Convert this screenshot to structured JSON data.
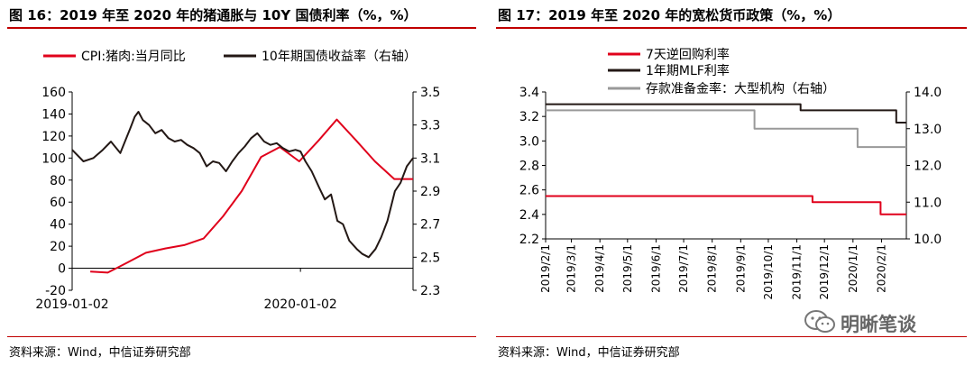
{
  "left_panel": {
    "title": "图 16：2019 年至 2020 年的猪通胀与 10Y 国债利率（%，%）",
    "source": "资料来源：Wind，中信证券研究部"
  },
  "right_panel": {
    "title": "图 17：2019 年至 2020 年的宽松货币政策（%，%）",
    "source": "资料来源：Wind，中信证券研究部"
  },
  "watermark": {
    "text": "明晰笔谈",
    "icon": "wechat-icon"
  },
  "chart_data": [
    {
      "type": "line",
      "x_type": "date",
      "xlim": [
        "2019-01-02",
        "2020-06-30"
      ],
      "x_ticks": [
        "2019-01-02",
        "2020-01-02"
      ],
      "ylim": [
        -20,
        160
      ],
      "y_ticks": [
        -20,
        0,
        20,
        40,
        60,
        80,
        100,
        120,
        140,
        160
      ],
      "y2lim": [
        2.3,
        3.5
      ],
      "y2_ticks": [
        2.3,
        2.5,
        2.7,
        2.9,
        3.1,
        3.3,
        3.5
      ],
      "legend_position": "top",
      "grid": false,
      "series": [
        {
          "name": "CPI:猪肉:当月同比",
          "axis": "left",
          "color": "#e0001b",
          "x": [
            "2019-01-31",
            "2019-02-28",
            "2019-03-31",
            "2019-04-30",
            "2019-05-31",
            "2019-06-30",
            "2019-07-31",
            "2019-08-31",
            "2019-09-30",
            "2019-10-31",
            "2019-11-30",
            "2019-12-31",
            "2020-01-31",
            "2020-02-29",
            "2020-03-31",
            "2020-04-30",
            "2020-05-31",
            "2020-06-30"
          ],
          "values": [
            -3,
            -4,
            5,
            14,
            18,
            21,
            27,
            47,
            70,
            101,
            110,
            97,
            116,
            135,
            116,
            97,
            81,
            81
          ]
        },
        {
          "name": "10年期国债收益率（右轴）",
          "axis": "right",
          "color": "#231815",
          "x": [
            "2019-01-02",
            "2019-01-20",
            "2019-02-05",
            "2019-02-20",
            "2019-03-05",
            "2019-03-20",
            "2019-04-05",
            "2019-04-12",
            "2019-04-18",
            "2019-04-25",
            "2019-05-05",
            "2019-05-15",
            "2019-05-25",
            "2019-06-05",
            "2019-06-15",
            "2019-06-25",
            "2019-07-05",
            "2019-07-15",
            "2019-07-25",
            "2019-08-05",
            "2019-08-15",
            "2019-08-25",
            "2019-09-05",
            "2019-09-15",
            "2019-09-25",
            "2019-10-05",
            "2019-10-15",
            "2019-10-25",
            "2019-11-05",
            "2019-11-15",
            "2019-11-25",
            "2019-12-05",
            "2019-12-15",
            "2019-12-25",
            "2020-01-02",
            "2020-01-10",
            "2020-01-20",
            "2020-02-01",
            "2020-02-10",
            "2020-02-20",
            "2020-03-01",
            "2020-03-10",
            "2020-03-20",
            "2020-04-01",
            "2020-04-10",
            "2020-04-20",
            "2020-05-01",
            "2020-05-10",
            "2020-05-20",
            "2020-06-01",
            "2020-06-10",
            "2020-06-20",
            "2020-06-30"
          ],
          "values": [
            3.15,
            3.08,
            3.1,
            3.15,
            3.2,
            3.13,
            3.28,
            3.35,
            3.38,
            3.33,
            3.3,
            3.25,
            3.27,
            3.22,
            3.2,
            3.21,
            3.18,
            3.16,
            3.13,
            3.05,
            3.08,
            3.07,
            3.02,
            3.08,
            3.13,
            3.17,
            3.22,
            3.25,
            3.2,
            3.18,
            3.19,
            3.16,
            3.14,
            3.15,
            3.14,
            3.08,
            3.02,
            2.92,
            2.85,
            2.88,
            2.72,
            2.7,
            2.6,
            2.55,
            2.52,
            2.5,
            2.55,
            2.62,
            2.72,
            2.9,
            2.95,
            3.05,
            3.1
          ]
        }
      ]
    },
    {
      "type": "line",
      "x_type": "date",
      "xlim": [
        "2019-02-01",
        "2020-02-28"
      ],
      "x_ticks": [
        "2019/2/1",
        "2019/3/1",
        "2019/4/1",
        "2019/5/1",
        "2019/6/1",
        "2019/7/1",
        "2019/8/1",
        "2019/9/1",
        "2019/10/1",
        "2019/11/1",
        "2019/12/1",
        "2020/1/1",
        "2020/2/1"
      ],
      "ylim": [
        2.2,
        3.4
      ],
      "y_ticks": [
        2.2,
        2.4,
        2.6,
        2.8,
        3.0,
        3.2,
        3.4
      ],
      "y2lim": [
        10.0,
        14.0
      ],
      "y2_ticks": [
        10.0,
        11.0,
        12.0,
        13.0,
        14.0
      ],
      "legend_position": "top-left",
      "grid": false,
      "series": [
        {
          "name": "7天逆回购利率",
          "axis": "left",
          "color": "#e0001b",
          "x": [
            "2019-02-01",
            "2019-11-18",
            "2019-11-18",
            "2020-01-31",
            "2020-01-31",
            "2020-02-28"
          ],
          "values": [
            2.55,
            2.55,
            2.5,
            2.5,
            2.4,
            2.4
          ]
        },
        {
          "name": "1年期MLF利率",
          "axis": "left",
          "color": "#231815",
          "x": [
            "2019-02-01",
            "2019-11-05",
            "2019-11-05",
            "2020-02-17",
            "2020-02-17",
            "2020-02-28"
          ],
          "values": [
            3.3,
            3.3,
            3.25,
            3.25,
            3.15,
            3.15
          ]
        },
        {
          "name": "存款准备金率：大型机构（右轴）",
          "axis": "right",
          "color": "#999999",
          "x": [
            "2019-02-01",
            "2019-09-16",
            "2019-09-16",
            "2020-01-06",
            "2020-01-06",
            "2020-02-28"
          ],
          "values": [
            13.5,
            13.5,
            13.0,
            13.0,
            12.5,
            12.5
          ]
        }
      ]
    }
  ]
}
